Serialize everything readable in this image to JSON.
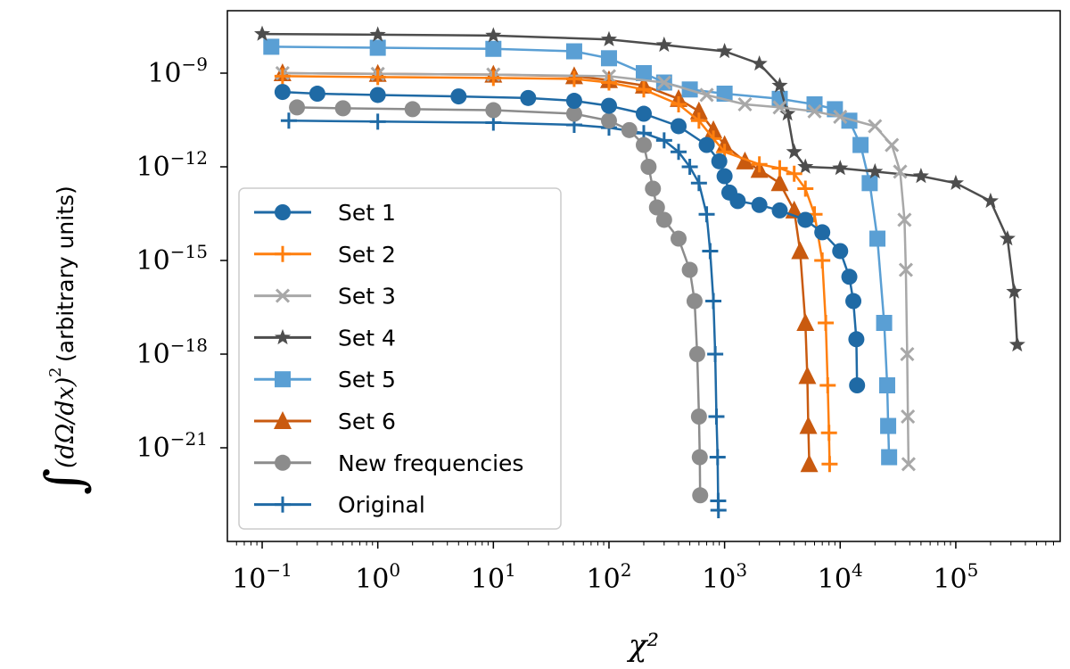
{
  "chart_data": {
    "type": "line",
    "xscale": "log",
    "yscale": "log",
    "xlabel": "χ²",
    "ylabel": {
      "integral": "∫",
      "math": "(dΩ/dx)",
      "superscript": "2",
      "text": "(arbitrary units)"
    },
    "xlim": [
      0.05,
      800000
    ],
    "ylim": [
      1e-24,
      1e-07
    ],
    "x_ticks": [
      {
        "value": 0.1,
        "base": "10",
        "exp": "−1"
      },
      {
        "value": 1,
        "base": "10",
        "exp": "0"
      },
      {
        "value": 10,
        "base": "10",
        "exp": "1"
      },
      {
        "value": 100,
        "base": "10",
        "exp": "2"
      },
      {
        "value": 1000,
        "base": "10",
        "exp": "3"
      },
      {
        "value": 10000,
        "base": "10",
        "exp": "4"
      },
      {
        "value": 100000,
        "base": "10",
        "exp": "5"
      }
    ],
    "y_ticks": [
      {
        "value": 1e-09,
        "base": "10",
        "exp": "−9"
      },
      {
        "value": 1e-12,
        "base": "10",
        "exp": "−12"
      },
      {
        "value": 1e-15,
        "base": "10",
        "exp": "−15"
      },
      {
        "value": 1e-18,
        "base": "10",
        "exp": "−18"
      },
      {
        "value": 1e-21,
        "base": "10",
        "exp": "−21"
      }
    ],
    "legend_position": "lower-left",
    "series": [
      {
        "name": "Set 1",
        "color": "#1f6aa5",
        "marker": "circle",
        "points": [
          [
            0.15,
            2.5e-10
          ],
          [
            0.3,
            2.2e-10
          ],
          [
            1,
            2e-10
          ],
          [
            5,
            1.8e-10
          ],
          [
            20,
            1.6e-10
          ],
          [
            50,
            1.3e-10
          ],
          [
            100,
            9e-11
          ],
          [
            200,
            5e-11
          ],
          [
            400,
            2e-11
          ],
          [
            700,
            5e-12
          ],
          [
            900,
            1.5e-12
          ],
          [
            1000,
            5e-13
          ],
          [
            1100,
            1.5e-13
          ],
          [
            1300,
            8e-14
          ],
          [
            2000,
            6e-14
          ],
          [
            3000,
            4e-14
          ],
          [
            5000,
            2e-14
          ],
          [
            7000,
            8e-15
          ],
          [
            10000,
            2e-15
          ],
          [
            12000,
            3e-16
          ],
          [
            13000,
            5e-17
          ],
          [
            13800,
            3e-18
          ],
          [
            14000,
            1e-19
          ]
        ]
      },
      {
        "name": "Set 2",
        "color": "#ff7f0e",
        "marker": "plus",
        "points": [
          [
            0.15,
            8e-10
          ],
          [
            1,
            7.5e-10
          ],
          [
            10,
            7e-10
          ],
          [
            50,
            6.5e-10
          ],
          [
            100,
            5e-10
          ],
          [
            200,
            3e-10
          ],
          [
            400,
            1e-10
          ],
          [
            600,
            3e-11
          ],
          [
            800,
            8e-12
          ],
          [
            1000,
            3e-12
          ],
          [
            2000,
            1.2e-12
          ],
          [
            3000,
            9e-13
          ],
          [
            4000,
            6e-13
          ],
          [
            5000,
            2e-13
          ],
          [
            6000,
            3e-14
          ],
          [
            7000,
            1e-15
          ],
          [
            7500,
            1e-17
          ],
          [
            7800,
            1e-19
          ],
          [
            8000,
            3e-21
          ],
          [
            8100,
            3e-22
          ]
        ]
      },
      {
        "name": "Set 3",
        "color": "#a8a8a8",
        "marker": "cross",
        "points": [
          [
            0.15,
            1e-09
          ],
          [
            1,
            9.5e-10
          ],
          [
            10,
            9e-10
          ],
          [
            100,
            8e-10
          ],
          [
            300,
            5e-10
          ],
          [
            700,
            2e-10
          ],
          [
            1500,
            1e-10
          ],
          [
            3000,
            8e-11
          ],
          [
            6000,
            6e-11
          ],
          [
            10000,
            4e-11
          ],
          [
            20000,
            2e-11
          ],
          [
            28000,
            5e-12
          ],
          [
            33000,
            7e-13
          ],
          [
            36000,
            2e-14
          ],
          [
            37000,
            5e-16
          ],
          [
            38000,
            1e-18
          ],
          [
            38500,
            1e-20
          ],
          [
            39000,
            3e-22
          ]
        ]
      },
      {
        "name": "Set 4",
        "color": "#4d4d4d",
        "marker": "star",
        "points": [
          [
            0.1,
            1.8e-08
          ],
          [
            1,
            1.7e-08
          ],
          [
            10,
            1.6e-08
          ],
          [
            100,
            1.2e-08
          ],
          [
            300,
            8e-09
          ],
          [
            1000,
            5e-09
          ],
          [
            2000,
            2e-09
          ],
          [
            3000,
            4e-10
          ],
          [
            3500,
            5e-11
          ],
          [
            4000,
            3e-12
          ],
          [
            5000,
            1e-12
          ],
          [
            10000,
            9e-13
          ],
          [
            20000,
            7e-13
          ],
          [
            50000,
            5e-13
          ],
          [
            100000,
            3e-13
          ],
          [
            200000,
            8e-14
          ],
          [
            280000,
            5e-15
          ],
          [
            320000,
            1e-16
          ],
          [
            340000,
            2e-18
          ]
        ]
      },
      {
        "name": "Set 5",
        "color": "#5a9fd4",
        "marker": "square",
        "points": [
          [
            0.12,
            7e-09
          ],
          [
            1,
            6.5e-09
          ],
          [
            10,
            6e-09
          ],
          [
            50,
            5e-09
          ],
          [
            100,
            3e-09
          ],
          [
            200,
            1e-09
          ],
          [
            300,
            5e-10
          ],
          [
            500,
            3e-10
          ],
          [
            1000,
            2.2e-10
          ],
          [
            3000,
            1.5e-10
          ],
          [
            6000,
            1e-10
          ],
          [
            9000,
            7e-11
          ],
          [
            12000,
            3e-11
          ],
          [
            15000,
            5e-12
          ],
          [
            18000,
            3e-13
          ],
          [
            21000,
            5e-15
          ],
          [
            24000,
            1e-17
          ],
          [
            25500,
            1e-19
          ],
          [
            26000,
            5e-21
          ],
          [
            26500,
            5e-22
          ]
        ]
      },
      {
        "name": "Set 6",
        "color": "#c95a0f",
        "marker": "triangle",
        "points": [
          [
            0.15,
            1e-09
          ],
          [
            1,
            9.5e-10
          ],
          [
            10,
            9e-10
          ],
          [
            50,
            8e-10
          ],
          [
            100,
            6e-10
          ],
          [
            200,
            4e-10
          ],
          [
            400,
            1.5e-10
          ],
          [
            600,
            6e-11
          ],
          [
            800,
            1.5e-11
          ],
          [
            1000,
            5e-12
          ],
          [
            1500,
            1.5e-12
          ],
          [
            2000,
            8e-13
          ],
          [
            3000,
            3e-13
          ],
          [
            4000,
            4e-14
          ],
          [
            4500,
            2e-15
          ],
          [
            5000,
            1e-17
          ],
          [
            5200,
            2e-19
          ],
          [
            5300,
            5e-21
          ],
          [
            5400,
            3e-22
          ]
        ]
      },
      {
        "name": "New frequencies",
        "color": "#8c8c8c",
        "marker": "circle",
        "points": [
          [
            0.2,
            8e-11
          ],
          [
            0.5,
            7.5e-11
          ],
          [
            2,
            7e-11
          ],
          [
            10,
            6.5e-11
          ],
          [
            50,
            5e-11
          ],
          [
            100,
            3e-11
          ],
          [
            150,
            1.5e-11
          ],
          [
            200,
            5e-12
          ],
          [
            220,
            1e-12
          ],
          [
            240,
            2e-13
          ],
          [
            260,
            5e-14
          ],
          [
            300,
            2e-14
          ],
          [
            400,
            5e-15
          ],
          [
            500,
            5e-16
          ],
          [
            550,
            5e-17
          ],
          [
            580,
            1e-18
          ],
          [
            600,
            1e-20
          ],
          [
            610,
            5e-22
          ],
          [
            615,
            3e-23
          ]
        ]
      },
      {
        "name": "Original",
        "color": "#1f6aa5",
        "marker": "plus",
        "points": [
          [
            0.17,
            3e-11
          ],
          [
            1,
            2.8e-11
          ],
          [
            10,
            2.6e-11
          ],
          [
            50,
            2.2e-11
          ],
          [
            100,
            1.8e-11
          ],
          [
            200,
            1.2e-11
          ],
          [
            300,
            7e-12
          ],
          [
            400,
            3e-12
          ],
          [
            500,
            1e-12
          ],
          [
            600,
            3e-13
          ],
          [
            700,
            3e-14
          ],
          [
            750,
            2e-15
          ],
          [
            800,
            5e-17
          ],
          [
            830,
            1e-18
          ],
          [
            850,
            1e-20
          ],
          [
            870,
            5e-22
          ],
          [
            880,
            2e-23
          ],
          [
            885,
            1e-23
          ]
        ]
      }
    ]
  }
}
